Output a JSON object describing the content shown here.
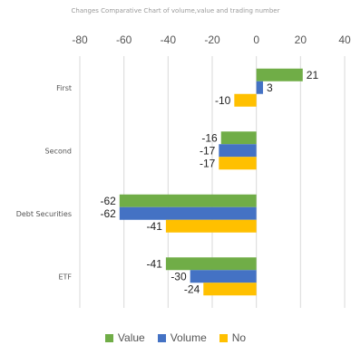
{
  "chart_data": {
    "type": "bar",
    "orientation": "horizontal",
    "title": "Changes Comparative  Chart of volume,value and trading number",
    "categories": [
      "First",
      "Second",
      "Debt Securities",
      "ETF"
    ],
    "series": [
      {
        "name": "Value",
        "color": "#70ad47",
        "values": [
          21,
          -16,
          -62,
          -41
        ]
      },
      {
        "name": "Volume",
        "color": "#4472c4",
        "values": [
          3,
          -17,
          -62,
          -30
        ]
      },
      {
        "name": "No",
        "color": "#ffc000",
        "values": [
          -10,
          -17,
          -41,
          -24
        ]
      }
    ],
    "xlim": [
      -80,
      40
    ],
    "xticks": [
      -80,
      -60,
      -40,
      -20,
      0,
      20,
      40
    ],
    "grid": true,
    "legend_position": "bottom"
  }
}
